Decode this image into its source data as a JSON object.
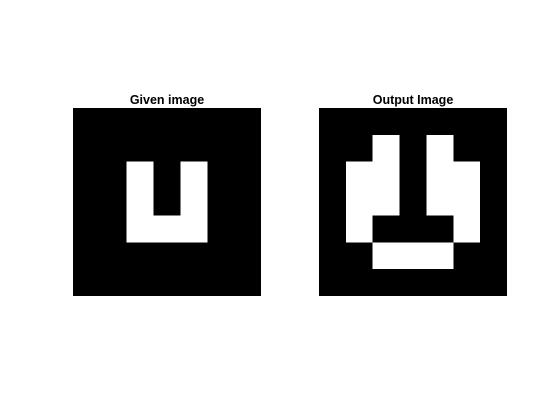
{
  "figure": {
    "background": "#ffffff",
    "on_color": "#ffffff",
    "off_color": "#000000"
  },
  "panels": [
    {
      "title": "Given image",
      "cells": [
        [
          0,
          0,
          0,
          0,
          0,
          0,
          0
        ],
        [
          0,
          0,
          0,
          0,
          0,
          0,
          0
        ],
        [
          0,
          0,
          1,
          0,
          1,
          0,
          0
        ],
        [
          0,
          0,
          1,
          0,
          1,
          0,
          0
        ],
        [
          0,
          0,
          1,
          1,
          1,
          0,
          0
        ],
        [
          0,
          0,
          0,
          0,
          0,
          0,
          0
        ],
        [
          0,
          0,
          0,
          0,
          0,
          0,
          0
        ]
      ]
    },
    {
      "title": "Output Image",
      "cells": [
        [
          0,
          0,
          0,
          0,
          0,
          0,
          0
        ],
        [
          0,
          0,
          1,
          0,
          1,
          0,
          0
        ],
        [
          0,
          1,
          1,
          0,
          1,
          1,
          0
        ],
        [
          0,
          1,
          1,
          0,
          1,
          1,
          0
        ],
        [
          0,
          1,
          0,
          0,
          0,
          1,
          0
        ],
        [
          0,
          0,
          1,
          1,
          1,
          0,
          0
        ],
        [
          0,
          0,
          0,
          0,
          0,
          0,
          0
        ]
      ]
    }
  ]
}
